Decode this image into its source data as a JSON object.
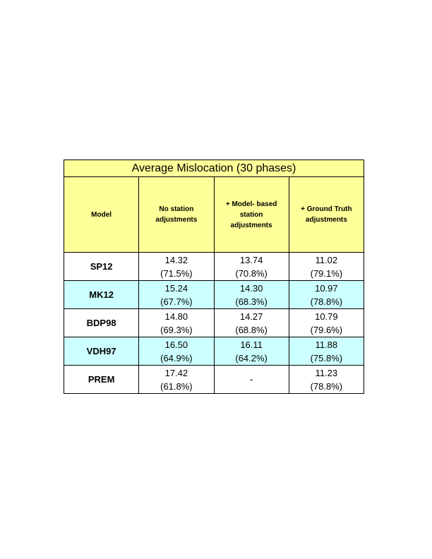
{
  "table": {
    "title": "Average Mislocation (30 phases)",
    "header": [
      [
        "Model"
      ],
      [
        "No station",
        "adjustments"
      ],
      [
        "+ Model- based",
        "station",
        "adjustments"
      ],
      [
        "+ Ground Truth",
        "adjustments"
      ]
    ],
    "rows": [
      [
        "SP12",
        [
          "14.32",
          "(71.5%)"
        ],
        [
          "13.74",
          "(70.8%)"
        ],
        [
          "11.02",
          "(79.1%)"
        ]
      ],
      [
        "MK12",
        [
          "15.24",
          "(67.7%)"
        ],
        [
          "14.30",
          "(68.3%)"
        ],
        [
          "10.97",
          "(78.8%)"
        ]
      ],
      [
        "BDP98",
        [
          "14.80",
          "(69.3%)"
        ],
        [
          "14.27",
          "(68.8%)"
        ],
        [
          "10.79",
          "(79.6%)"
        ]
      ],
      [
        "VDH97",
        [
          "16.50",
          "(64.9%)"
        ],
        [
          "16.11",
          "(64.2%)"
        ],
        [
          "11.88",
          "(75.8%)"
        ]
      ],
      [
        "PREM",
        [
          "17.42",
          "(61.8%)"
        ],
        [
          "-"
        ],
        [
          "11.23",
          "(78.8%)"
        ]
      ]
    ]
  }
}
